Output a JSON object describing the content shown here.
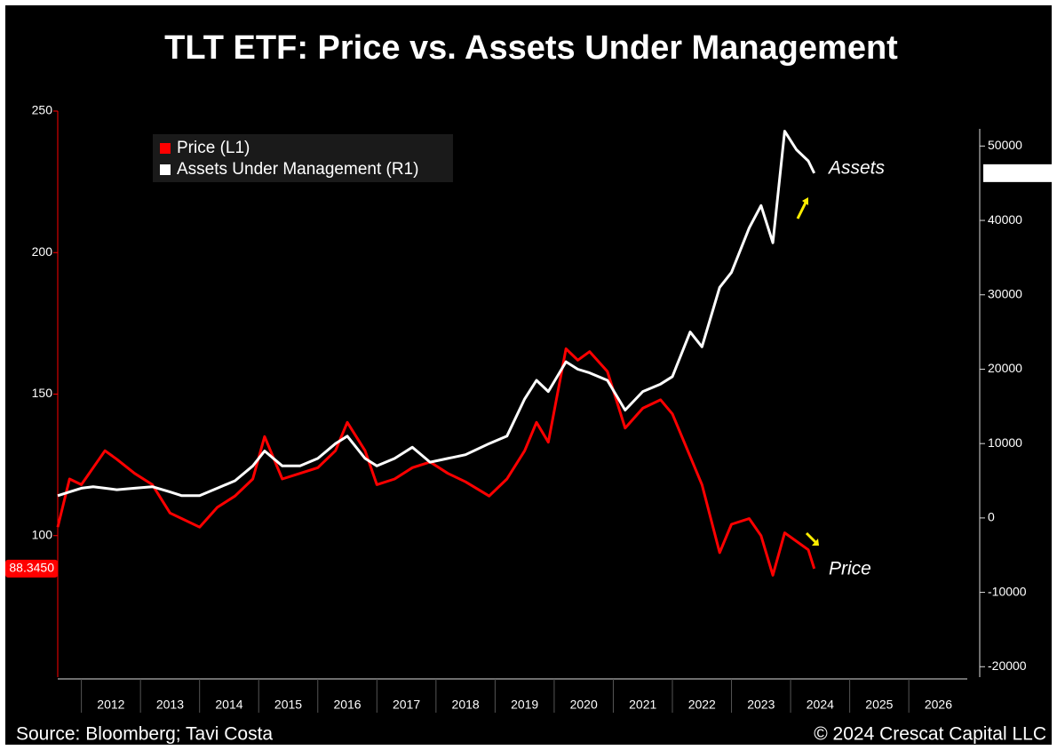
{
  "chart_data": {
    "type": "line",
    "title": "TLT ETF: Price vs. Assets Under Management",
    "source": "Source: Bloomberg; Tavi Costa",
    "copyright": "© 2024 Crescat Capital LLC",
    "annotations": [
      "Assets",
      "Price"
    ],
    "x": [
      2011.6,
      2011.8,
      2012.0,
      2012.2,
      2012.4,
      2012.6,
      2012.9,
      2013.2,
      2013.5,
      2013.7,
      2014.0,
      2014.3,
      2014.6,
      2014.9,
      2015.1,
      2015.4,
      2015.7,
      2016.0,
      2016.3,
      2016.5,
      2016.8,
      2017.0,
      2017.3,
      2017.6,
      2017.9,
      2018.2,
      2018.5,
      2018.9,
      2019.2,
      2019.5,
      2019.7,
      2019.9,
      2020.2,
      2020.4,
      2020.6,
      2020.9,
      2021.2,
      2021.5,
      2021.8,
      2022.0,
      2022.3,
      2022.5,
      2022.8,
      2023.0,
      2023.3,
      2023.5,
      2023.7,
      2023.9,
      2024.1,
      2024.3,
      2024.4
    ],
    "series": [
      {
        "name": "Price (L1)",
        "color": "#ff0000",
        "axis": "y",
        "values": [
          103,
          120,
          118,
          124,
          130,
          127,
          122,
          118,
          108,
          106,
          103,
          110,
          114,
          120,
          135,
          120,
          122,
          124,
          130,
          140,
          130,
          118,
          120,
          124,
          126,
          122,
          119,
          114,
          120,
          130,
          140,
          133,
          166,
          162,
          165,
          158,
          138,
          145,
          148,
          143,
          128,
          118,
          94,
          104,
          106,
          100,
          86,
          101,
          98,
          95,
          88.345
        ],
        "value_labels": [
          null,
          null,
          null,
          null,
          null,
          null,
          null,
          null,
          null,
          null,
          null,
          null,
          null,
          null,
          null,
          null,
          null,
          null,
          null,
          null,
          null,
          null,
          null,
          null,
          null,
          null,
          null,
          null,
          null,
          null,
          null,
          null,
          null,
          null,
          null,
          null,
          null,
          null,
          null,
          null,
          null,
          null,
          null,
          null,
          null,
          null,
          null,
          null,
          null,
          null,
          "88.3450"
        ]
      },
      {
        "name": "Assets Under Management (R1)",
        "color": "#ffffff",
        "axis": "y2",
        "values": [
          3000,
          3500,
          4000,
          4200,
          4000,
          3800,
          4000,
          4200,
          3500,
          3000,
          3000,
          4000,
          5000,
          7000,
          9000,
          7000,
          7000,
          8000,
          10000,
          11000,
          8000,
          7000,
          8000,
          9500,
          7500,
          8000,
          8500,
          10000,
          11000,
          16000,
          18500,
          17000,
          21000,
          20000,
          19500,
          18500,
          14500,
          17000,
          18000,
          19000,
          25000,
          23000,
          31000,
          33000,
          39000,
          42000,
          37000,
          52000,
          49500,
          48000,
          46353.6133
        ]
      }
    ],
    "xlim": [
      2011.6,
      2027.2
    ],
    "xticks": [
      2012,
      2013,
      2014,
      2015,
      2016,
      2017,
      2018,
      2019,
      2020,
      2021,
      2022,
      2023,
      2024,
      2025,
      2026
    ],
    "ylim": [
      50,
      250
    ],
    "yticks": [
      100,
      150,
      200,
      250
    ],
    "y2lim": [
      -21400,
      54700
    ],
    "y2ticks": [
      -20000,
      -10000,
      0,
      10000,
      20000,
      30000,
      40000,
      50000
    ],
    "legend": "upper left"
  }
}
